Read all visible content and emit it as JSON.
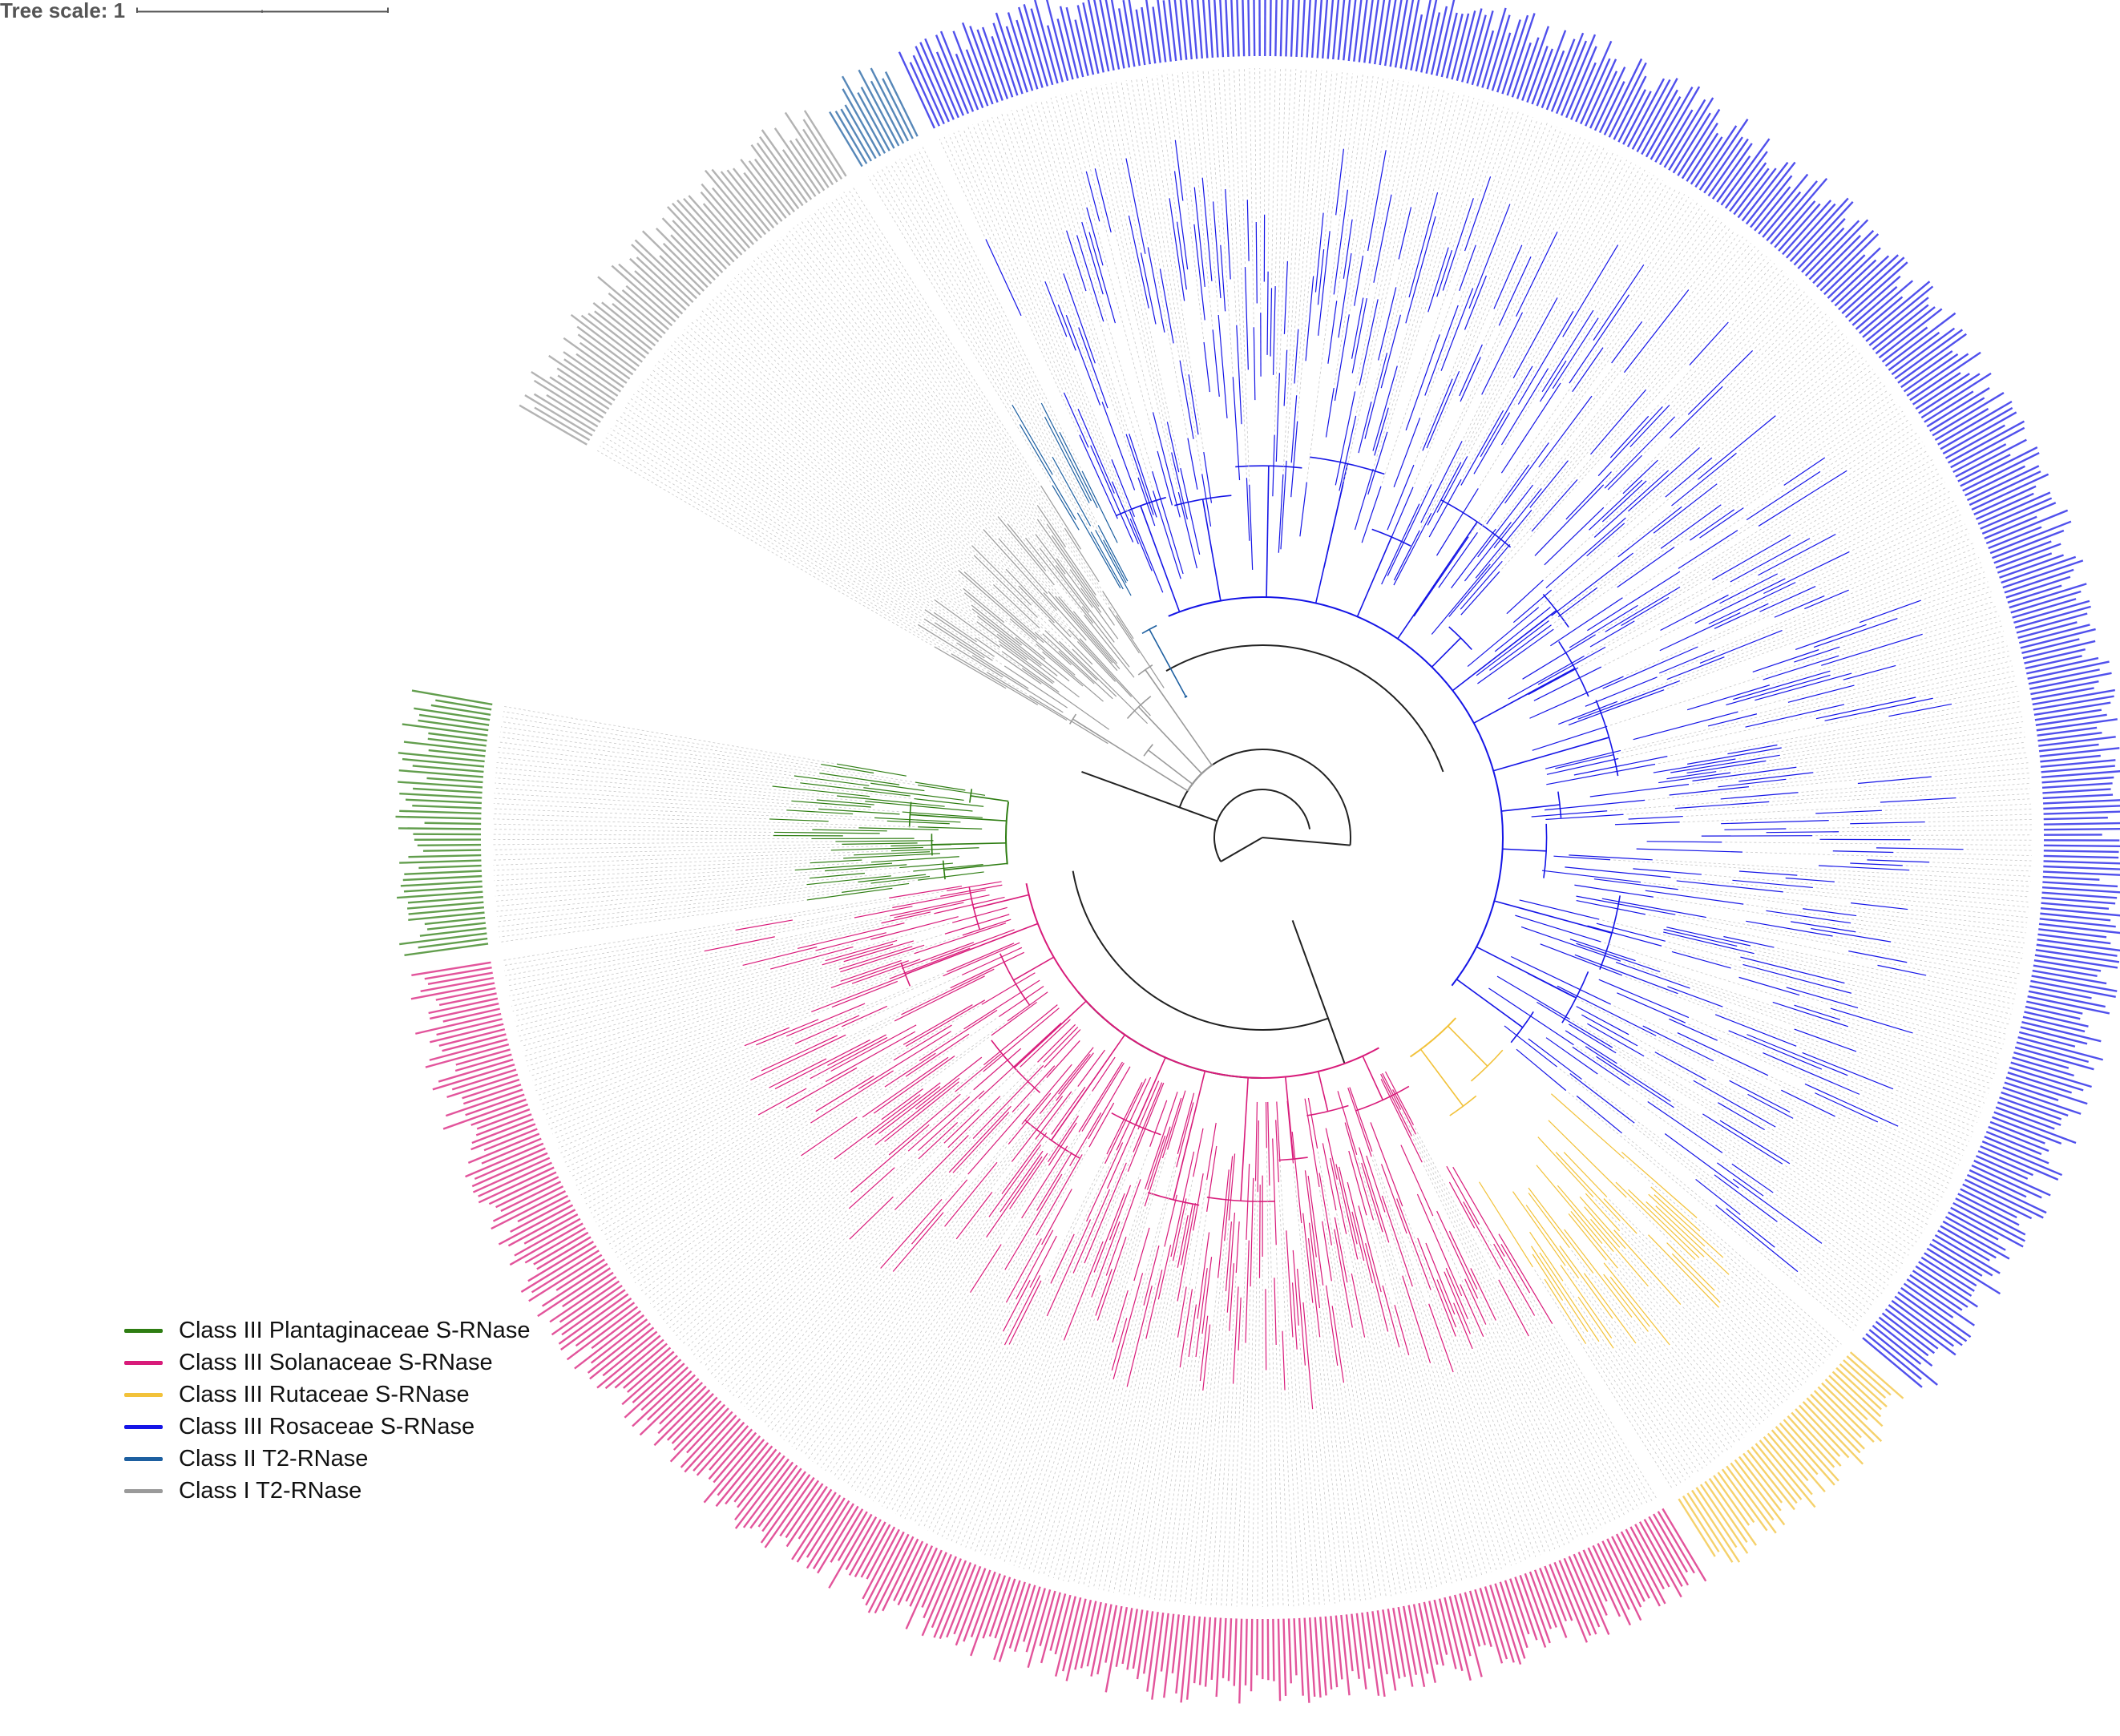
{
  "tree_scale": {
    "label": "Tree scale: 1"
  },
  "legend": [
    {
      "key": "plant",
      "label": "Class III Plantaginaceae S-RNase",
      "color": "#2e7d12"
    },
    {
      "key": "sol",
      "label": "Class III Solanaceae S-RNase",
      "color": "#d81b7a"
    },
    {
      "key": "rut",
      "label": "Class III Rutaceae S-RNase",
      "color": "#f2c23a"
    },
    {
      "key": "ros",
      "label": "Class III Rosaceae S-RNase",
      "color": "#1515e6"
    },
    {
      "key": "c2",
      "label": "Class II T2-RNase",
      "color": "#1d5fa0"
    },
    {
      "key": "c1",
      "label": "Class I T2-RNase",
      "color": "#9a9a9a"
    }
  ],
  "colors": {
    "backbone": "#222222",
    "leader": "#c8c8c8"
  }
}
